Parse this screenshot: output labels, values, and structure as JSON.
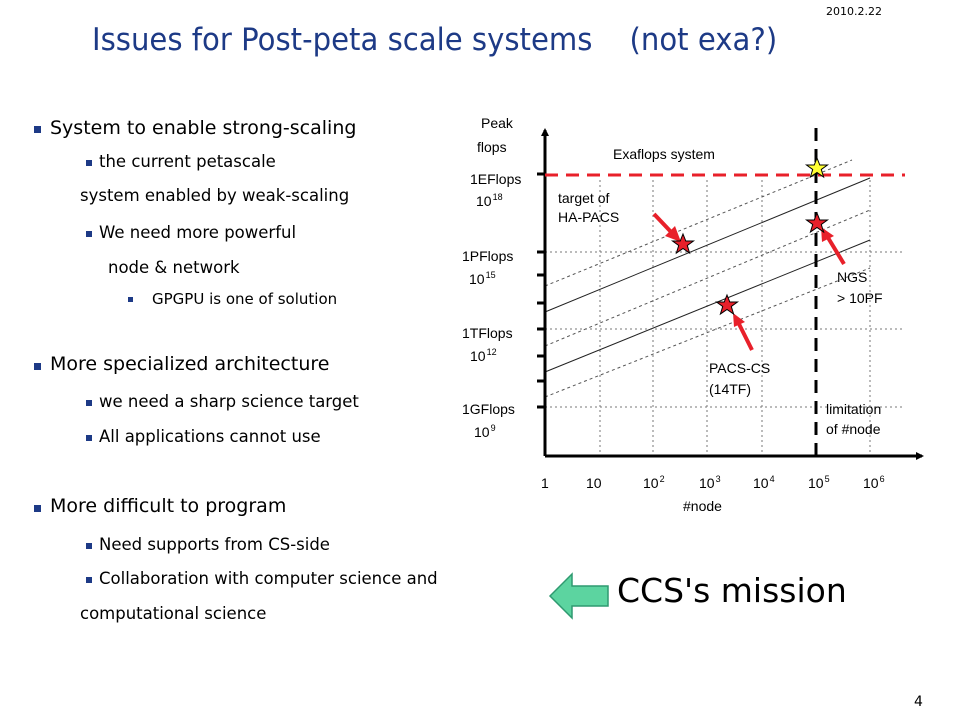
{
  "date": "2010.2.22",
  "title": "Issues for Post-peta scale systems    (not exa?)",
  "bullets": [
    {
      "text": "System to enable strong-scaling"
    },
    {
      "text": "the current petascale"
    },
    {
      "text": "system enabled by weak-scaling"
    },
    {
      "text": "We need more powerful"
    },
    {
      "text": "node & network"
    },
    {
      "text": "GPGPU is one of solution"
    },
    {
      "text": "More specialized architecture"
    },
    {
      "text": "we need a sharp science target"
    },
    {
      "text": "All applications cannot use"
    },
    {
      "text": "More difficult to program"
    },
    {
      "text": "Need supports from CS-side"
    },
    {
      "text": "Collaboration with computer science and"
    },
    {
      "text": "computational science"
    }
  ],
  "diagram": {
    "y_axis_title": [
      "Peak",
      "flops"
    ],
    "y_labels": [
      {
        "name": "1EFlops",
        "base": "10",
        "exp": "18"
      },
      {
        "name": "1PFlops",
        "base": "10",
        "exp": "15"
      },
      {
        "name": "1TFlops",
        "base": "10",
        "exp": "12"
      },
      {
        "name": "1GFlops",
        "base": "10",
        "exp": "9"
      }
    ],
    "x_labels": [
      {
        "base": "1",
        "exp": ""
      },
      {
        "base": "10",
        "exp": ""
      },
      {
        "base": "10",
        "exp": "2"
      },
      {
        "base": "10",
        "exp": "3"
      },
      {
        "base": "10",
        "exp": "4"
      },
      {
        "base": "10",
        "exp": "5"
      },
      {
        "base": "10",
        "exp": "6"
      }
    ],
    "x_axis_title": "#node",
    "exaflops_label": "Exaflops system",
    "target_label": [
      "target of",
      "HA-PACS"
    ],
    "ngs_label": [
      "NGS",
      "> 10PF"
    ],
    "pacs_label": [
      "PACS-CS",
      "(14TF)"
    ],
    "limitation_label": [
      "limitation",
      "of #node"
    ],
    "colors": {
      "red": "#e8202a",
      "axis": "#000000",
      "grid": "#777777",
      "star_yellow": "#ffff33",
      "arrow_fill": "#5cd4a0",
      "arrow_stroke": "#2f9a70"
    }
  },
  "mission": "CCS's mission",
  "page_number": "4"
}
